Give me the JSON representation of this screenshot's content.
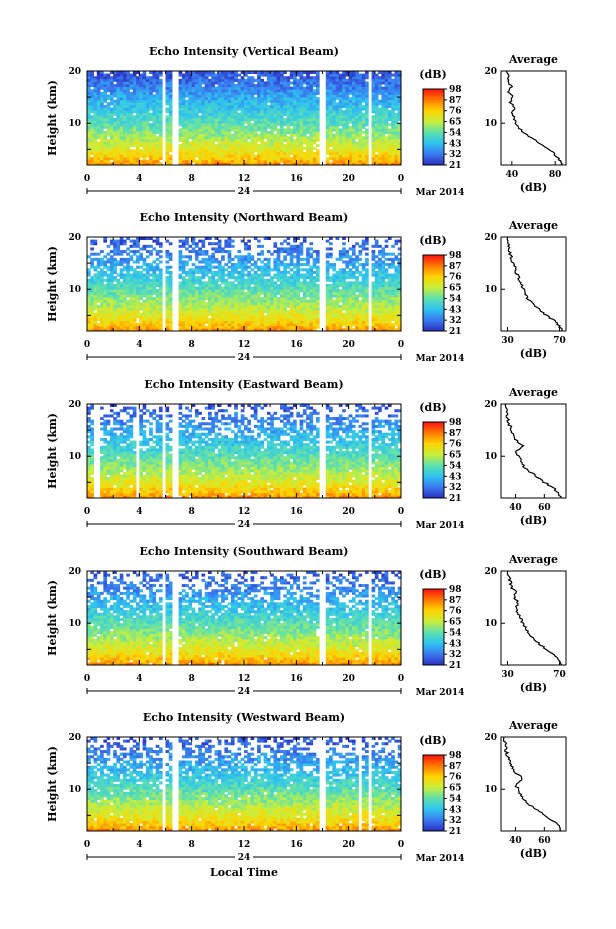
{
  "figure": {
    "x_axis_label": "Local Time",
    "colorbar_unit": "(dB)",
    "average_panel_title": "Average",
    "average_x_label": "(dB)",
    "date_text": "Mar 2014",
    "day_label": "24"
  },
  "colorscale": {
    "ticks": [
      "98",
      "87",
      "76",
      "65",
      "54",
      "43",
      "32",
      "21"
    ],
    "stops": [
      "#ff1010",
      "#ff7a00",
      "#ffd400",
      "#c8ef3c",
      "#5fe0ad",
      "#2ec4f0",
      "#3a7af0",
      "#2a2fc0"
    ]
  },
  "chart_data": [
    {
      "type": "heatmap",
      "title": "Echo Intensity (Vertical Beam)",
      "xlabel": "",
      "ylabel": "Height (km)",
      "xlim": [
        0,
        24
      ],
      "x_ticks": [
        "0",
        "4",
        "8",
        "12",
        "16",
        "20",
        "0"
      ],
      "ylim": [
        2,
        20
      ],
      "y_ticks": [
        "20",
        "10"
      ],
      "value_range_db": [
        21,
        98
      ],
      "data_gaps_hours": [
        [
          5.7,
          6.0
        ],
        [
          6.6,
          7.1
        ],
        [
          17.8,
          18.2
        ],
        [
          21.4,
          21.8
        ]
      ],
      "average_profile": {
        "xlabel": "(dB)",
        "ylabel": "",
        "x_ticks": [
          "40",
          "80"
        ],
        "xlim": [
          30,
          90
        ],
        "ylim": [
          2,
          20
        ],
        "profile": [
          [
            2,
            86
          ],
          [
            3,
            84
          ],
          [
            4,
            80
          ],
          [
            5,
            74
          ],
          [
            6,
            66
          ],
          [
            7,
            60
          ],
          [
            8,
            52
          ],
          [
            9,
            47
          ],
          [
            10,
            44
          ],
          [
            11,
            42
          ],
          [
            12,
            40
          ],
          [
            13,
            43
          ],
          [
            14,
            38
          ],
          [
            15,
            41
          ],
          [
            16,
            37
          ],
          [
            17,
            40
          ],
          [
            18,
            36
          ],
          [
            19,
            37
          ],
          [
            20,
            35
          ]
        ]
      }
    },
    {
      "type": "heatmap",
      "title": "Echo Intensity (Northward Beam)",
      "xlabel": "",
      "ylabel": "Height (km)",
      "xlim": [
        0,
        24
      ],
      "x_ticks": [
        "0",
        "4",
        "8",
        "12",
        "16",
        "20",
        "0"
      ],
      "ylim": [
        2,
        20
      ],
      "y_ticks": [
        "20",
        "10"
      ],
      "value_range_db": [
        21,
        98
      ],
      "data_gaps_hours": [
        [
          5.7,
          6.0
        ],
        [
          6.6,
          7.1
        ],
        [
          17.8,
          18.2
        ],
        [
          21.4,
          21.8
        ]
      ],
      "average_profile": {
        "xlabel": "(dB)",
        "ylabel": "",
        "x_ticks": [
          "30",
          "70"
        ],
        "xlim": [
          25,
          75
        ],
        "ylim": [
          2,
          20
        ],
        "profile": [
          [
            2,
            72
          ],
          [
            3,
            70
          ],
          [
            4,
            66
          ],
          [
            5,
            60
          ],
          [
            6,
            55
          ],
          [
            7,
            50
          ],
          [
            8,
            46
          ],
          [
            9,
            44
          ],
          [
            10,
            42
          ],
          [
            11,
            41
          ],
          [
            12,
            39
          ],
          [
            13,
            37
          ],
          [
            14,
            36
          ],
          [
            15,
            34
          ],
          [
            16,
            33
          ],
          [
            17,
            32
          ],
          [
            18,
            31
          ],
          [
            19,
            30
          ],
          [
            20,
            30
          ]
        ]
      }
    },
    {
      "type": "heatmap",
      "title": "Echo Intensity (Eastward Beam)",
      "xlabel": "",
      "ylabel": "Height (km)",
      "xlim": [
        0,
        24
      ],
      "x_ticks": [
        "0",
        "4",
        "8",
        "12",
        "16",
        "20",
        "0"
      ],
      "ylim": [
        2,
        20
      ],
      "y_ticks": [
        "20",
        "10"
      ],
      "value_range_db": [
        21,
        98
      ],
      "data_gaps_hours": [
        [
          0.6,
          0.9
        ],
        [
          3.8,
          4.0
        ],
        [
          5.7,
          6.0
        ],
        [
          6.6,
          7.1
        ],
        [
          17.8,
          18.2
        ],
        [
          21.4,
          21.8
        ]
      ],
      "average_profile": {
        "xlabel": "(dB)",
        "ylabel": "",
        "x_ticks": [
          "40",
          "60"
        ],
        "xlim": [
          30,
          75
        ],
        "ylim": [
          2,
          20
        ],
        "profile": [
          [
            2,
            72
          ],
          [
            3,
            70
          ],
          [
            4,
            66
          ],
          [
            5,
            60
          ],
          [
            6,
            55
          ],
          [
            7,
            50
          ],
          [
            8,
            46
          ],
          [
            9,
            44
          ],
          [
            10,
            42
          ],
          [
            11,
            40
          ],
          [
            12,
            45
          ],
          [
            13,
            41
          ],
          [
            14,
            38
          ],
          [
            15,
            37
          ],
          [
            16,
            36
          ],
          [
            17,
            35
          ],
          [
            18,
            34
          ],
          [
            19,
            34
          ],
          [
            20,
            33
          ]
        ]
      }
    },
    {
      "type": "heatmap",
      "title": "Echo Intensity (Southward Beam)",
      "xlabel": "",
      "ylabel": "Height (km)",
      "xlim": [
        0,
        24
      ],
      "x_ticks": [
        "0",
        "4",
        "8",
        "12",
        "16",
        "20",
        "0"
      ],
      "ylim": [
        2,
        20
      ],
      "y_ticks": [
        "20",
        "10"
      ],
      "value_range_db": [
        21,
        98
      ],
      "data_gaps_hours": [
        [
          5.7,
          6.0
        ],
        [
          6.6,
          7.1
        ],
        [
          17.8,
          18.2
        ],
        [
          21.4,
          21.8
        ]
      ],
      "average_profile": {
        "xlabel": "(dB)",
        "ylabel": "",
        "x_ticks": [
          "30",
          "70"
        ],
        "xlim": [
          25,
          75
        ],
        "ylim": [
          2,
          20
        ],
        "profile": [
          [
            2,
            72
          ],
          [
            3,
            70
          ],
          [
            4,
            66
          ],
          [
            5,
            60
          ],
          [
            6,
            55
          ],
          [
            7,
            50
          ],
          [
            8,
            46
          ],
          [
            9,
            44
          ],
          [
            10,
            42
          ],
          [
            11,
            40
          ],
          [
            12,
            38
          ],
          [
            13,
            37
          ],
          [
            14,
            38
          ],
          [
            15,
            35
          ],
          [
            16,
            36
          ],
          [
            17,
            33
          ],
          [
            18,
            32
          ],
          [
            19,
            31
          ],
          [
            20,
            30
          ]
        ]
      }
    },
    {
      "type": "heatmap",
      "title": "Echo Intensity (Westward Beam)",
      "xlabel": "Local Time",
      "ylabel": "Height (km)",
      "xlim": [
        0,
        24
      ],
      "x_ticks": [
        "0",
        "4",
        "8",
        "12",
        "16",
        "20",
        "0"
      ],
      "ylim": [
        2,
        20
      ],
      "y_ticks": [
        "20",
        "10"
      ],
      "value_range_db": [
        21,
        98
      ],
      "data_gaps_hours": [
        [
          5.7,
          6.0
        ],
        [
          6.6,
          7.1
        ],
        [
          17.8,
          18.2
        ],
        [
          20.8,
          21.1
        ],
        [
          21.4,
          21.8
        ]
      ],
      "average_profile": {
        "xlabel": "(dB)",
        "ylabel": "",
        "x_ticks": [
          "40",
          "60"
        ],
        "xlim": [
          30,
          75
        ],
        "ylim": [
          2,
          20
        ],
        "profile": [
          [
            2,
            72
          ],
          [
            3,
            70
          ],
          [
            4,
            66
          ],
          [
            5,
            60
          ],
          [
            6,
            55
          ],
          [
            7,
            50
          ],
          [
            8,
            46
          ],
          [
            9,
            44
          ],
          [
            10,
            42
          ],
          [
            11,
            40
          ],
          [
            12,
            45
          ],
          [
            13,
            41
          ],
          [
            14,
            38
          ],
          [
            15,
            36
          ],
          [
            16,
            35
          ],
          [
            17,
            34
          ],
          [
            18,
            33
          ],
          [
            19,
            33
          ],
          [
            20,
            32
          ]
        ]
      }
    }
  ]
}
